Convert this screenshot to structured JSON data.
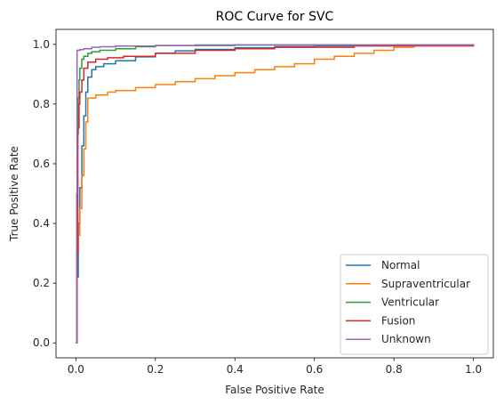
{
  "chart_data": {
    "type": "line",
    "title": "ROC Curve for SVC",
    "xlabel": "False Positive Rate",
    "ylabel": "True Positive Rate",
    "xlim": [
      -0.05,
      1.05
    ],
    "ylim": [
      -0.05,
      1.05
    ],
    "xticks": [
      "0.0",
      "0.2",
      "0.4",
      "0.6",
      "0.8",
      "1.0"
    ],
    "yticks": [
      "0.0",
      "0.2",
      "0.4",
      "0.6",
      "0.8",
      "1.0"
    ],
    "grid": false,
    "legend_position": "lower-right",
    "series": [
      {
        "name": "Normal",
        "color": "#1f77b4",
        "x": [
          0.0,
          0.003,
          0.006,
          0.01,
          0.015,
          0.02,
          0.025,
          0.03,
          0.04,
          0.05,
          0.07,
          0.1,
          0.15,
          0.2,
          0.25,
          0.3,
          0.4,
          0.5,
          0.6,
          0.8,
          1.0
        ],
        "y": [
          0.0,
          0.22,
          0.4,
          0.52,
          0.66,
          0.76,
          0.84,
          0.89,
          0.915,
          0.925,
          0.935,
          0.945,
          0.958,
          0.97,
          0.978,
          0.983,
          0.988,
          0.992,
          0.995,
          0.998,
          1.0
        ]
      },
      {
        "name": "Supraventricular",
        "color": "#ff7f0e",
        "x": [
          0.0,
          0.003,
          0.006,
          0.01,
          0.015,
          0.02,
          0.025,
          0.03,
          0.05,
          0.08,
          0.1,
          0.15,
          0.2,
          0.25,
          0.3,
          0.35,
          0.4,
          0.45,
          0.5,
          0.55,
          0.6,
          0.65,
          0.7,
          0.75,
          0.8,
          0.85,
          1.0
        ],
        "y": [
          0.0,
          0.3,
          0.36,
          0.45,
          0.56,
          0.65,
          0.74,
          0.82,
          0.83,
          0.84,
          0.845,
          0.855,
          0.865,
          0.875,
          0.885,
          0.895,
          0.905,
          0.915,
          0.925,
          0.935,
          0.95,
          0.96,
          0.97,
          0.98,
          0.99,
          0.995,
          1.0
        ]
      },
      {
        "name": "Ventricular",
        "color": "#2ca02c",
        "x": [
          0.0,
          0.002,
          0.004,
          0.006,
          0.008,
          0.01,
          0.015,
          0.02,
          0.03,
          0.04,
          0.06,
          0.1,
          0.15,
          0.2,
          0.4,
          1.0
        ],
        "y": [
          0.0,
          0.45,
          0.7,
          0.82,
          0.88,
          0.92,
          0.95,
          0.96,
          0.97,
          0.975,
          0.98,
          0.985,
          0.992,
          0.996,
          0.998,
          1.0
        ]
      },
      {
        "name": "Fusion",
        "color": "#d62728",
        "x": [
          0.0,
          0.003,
          0.005,
          0.008,
          0.01,
          0.015,
          0.02,
          0.03,
          0.05,
          0.08,
          0.12,
          0.2,
          0.3,
          0.4,
          0.5,
          0.7,
          1.0
        ],
        "y": [
          0.0,
          0.3,
          0.72,
          0.8,
          0.84,
          0.88,
          0.92,
          0.94,
          0.95,
          0.955,
          0.96,
          0.97,
          0.98,
          0.985,
          0.99,
          0.995,
          1.0
        ]
      },
      {
        "name": "Unknown",
        "color": "#9467bd",
        "x": [
          0.0,
          0.002,
          0.003,
          0.005,
          0.01,
          0.02,
          0.04,
          0.06,
          0.1,
          0.2,
          0.3,
          1.0
        ],
        "y": [
          0.0,
          0.5,
          0.98,
          0.98,
          0.982,
          0.985,
          0.99,
          0.992,
          0.994,
          0.996,
          0.998,
          1.0
        ]
      }
    ]
  }
}
